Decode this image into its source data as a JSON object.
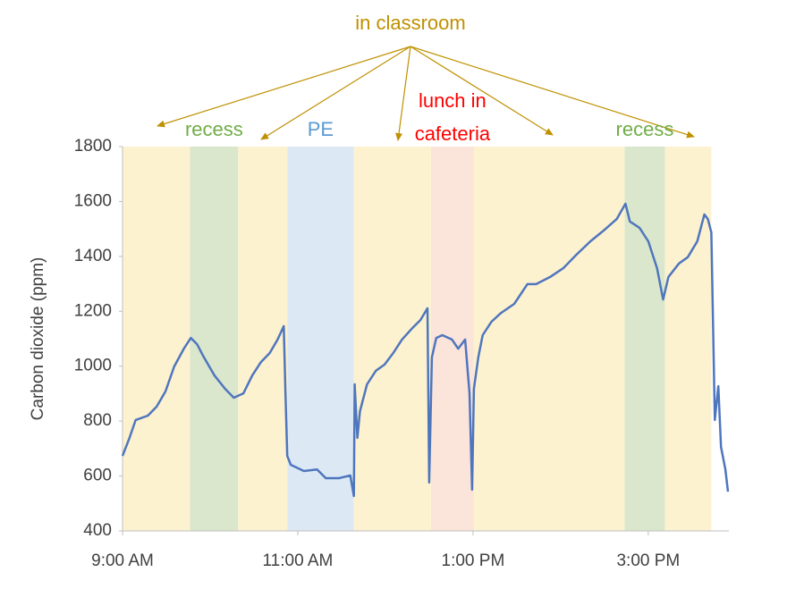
{
  "chart_data": {
    "type": "line",
    "ylabel": "Carbon dioxide (ppm)",
    "annotation": {
      "text": "in classroom",
      "color": "#bf9000"
    },
    "x": [
      9.0,
      9.08,
      9.15,
      9.29,
      9.39,
      9.49,
      9.59,
      9.7,
      9.78,
      9.85,
      9.93,
      10.05,
      10.17,
      10.27,
      10.38,
      10.48,
      10.58,
      10.68,
      10.77,
      10.84,
      10.86,
      10.88,
      10.92,
      11.07,
      11.22,
      11.32,
      11.47,
      11.6,
      11.64,
      11.65,
      11.68,
      11.71,
      11.79,
      11.89,
      11.99,
      12.09,
      12.19,
      12.3,
      12.4,
      12.48,
      12.5,
      12.53,
      12.58,
      12.65,
      12.76,
      12.83,
      12.91,
      12.96,
      12.99,
      13.01,
      13.06,
      13.11,
      13.21,
      13.32,
      13.47,
      13.62,
      13.72,
      13.88,
      14.03,
      14.18,
      14.34,
      14.49,
      14.64,
      14.74,
      14.79,
      14.9,
      15.0,
      15.1,
      15.17,
      15.23,
      15.35,
      15.45,
      15.56,
      15.64,
      15.68,
      15.72,
      15.76,
      15.8,
      15.83,
      15.88,
      15.91
    ],
    "values": [
      673,
      739,
      804,
      820,
      853,
      908,
      999,
      1064,
      1103,
      1080,
      1032,
      966,
      918,
      885,
      901,
      966,
      1015,
      1048,
      1097,
      1146,
      901,
      673,
      641,
      618,
      624,
      592,
      592,
      602,
      527,
      934,
      739,
      836,
      934,
      983,
      1006,
      1048,
      1097,
      1136,
      1168,
      1211,
      576,
      1032,
      1103,
      1113,
      1097,
      1064,
      1097,
      901,
      550,
      918,
      1032,
      1113,
      1162,
      1194,
      1227,
      1299,
      1299,
      1325,
      1357,
      1406,
      1455,
      1494,
      1536,
      1592,
      1527,
      1504,
      1455,
      1357,
      1243,
      1325,
      1374,
      1397,
      1455,
      1553,
      1536,
      1487,
      804,
      927,
      706,
      624,
      543
    ],
    "color": "#4f76bd",
    "bands": [
      {
        "start": 9.0,
        "end": 9.77,
        "color": "#fdf2d0"
      },
      {
        "start": 9.77,
        "end": 10.32,
        "color": "#dbe7cc",
        "label": "recess",
        "label_color": "#70ad47"
      },
      {
        "start": 10.32,
        "end": 10.88,
        "color": "#fdf2d0"
      },
      {
        "start": 10.88,
        "end": 11.64,
        "color": "#dde8f5",
        "label": "PE",
        "label_color": "#5b9bd5"
      },
      {
        "start": 11.64,
        "end": 12.52,
        "color": "#fdf2d0"
      },
      {
        "start": 12.52,
        "end": 13.01,
        "color": "#fbe4da",
        "label": [
          "lunch in",
          "cafeteria"
        ],
        "label_color": "#ff0000"
      },
      {
        "start": 13.01,
        "end": 14.73,
        "color": "#fdf2d0"
      },
      {
        "start": 14.73,
        "end": 15.19,
        "color": "#dbe7cc",
        "label": "recess",
        "label_color": "#70ad47"
      },
      {
        "start": 15.19,
        "end": 15.72,
        "color": "#fdf2d0"
      }
    ],
    "xlim": [
      9,
      15.92
    ],
    "xticks": [
      {
        "value": 9,
        "label": "9:00 AM"
      },
      {
        "value": 11,
        "label": "11:00 AM"
      },
      {
        "value": 13,
        "label": "1:00 PM"
      },
      {
        "value": 15,
        "label": "3:00 PM"
      }
    ],
    "ylim": [
      400,
      1800
    ],
    "yticks": [
      400,
      600,
      800,
      1000,
      1200,
      1400,
      1600,
      1800
    ],
    "grid": false
  }
}
